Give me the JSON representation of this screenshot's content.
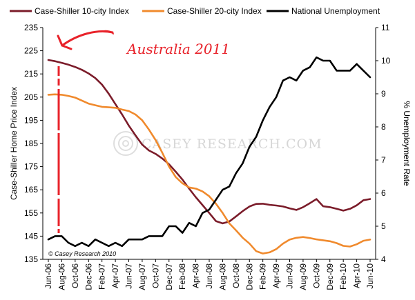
{
  "chart_data": {
    "type": "line",
    "title": "",
    "x": [
      "Jun-06",
      "Jul-06",
      "Aug-06",
      "Sep-06",
      "Oct-06",
      "Nov-06",
      "Dec-06",
      "Jan-07",
      "Feb-07",
      "Mar-07",
      "Apr-07",
      "May-07",
      "Jun-07",
      "Jul-07",
      "Aug-07",
      "Sep-07",
      "Oct-07",
      "Nov-07",
      "Dec-07",
      "Jan-08",
      "Feb-08",
      "Mar-08",
      "Apr-08",
      "May-08",
      "Jun-08",
      "Jul-08",
      "Aug-08",
      "Sep-08",
      "Oct-08",
      "Nov-08",
      "Dec-08",
      "Jan-09",
      "Feb-09",
      "Mar-09",
      "Apr-09",
      "May-09",
      "Jun-09",
      "Jul-09",
      "Aug-09",
      "Sep-09",
      "Oct-09",
      "Nov-09",
      "Dec-09",
      "Jan-10",
      "Feb-10",
      "Mar-10",
      "Apr-10",
      "May-10",
      "Jun-10"
    ],
    "x_tick_labels": [
      "Jun-06",
      "Aug-06",
      "Oct-06",
      "Dec-06",
      "Feb-07",
      "Apr-07",
      "Jun-07",
      "Aug-07",
      "Oct-07",
      "Dec-07",
      "Feb-08",
      "Apr-08",
      "Jun-08",
      "Aug-08",
      "Oct-08",
      "Dec-08",
      "Feb-09",
      "Apr-09",
      "Jun-09",
      "Aug-09",
      "Oct-09",
      "Dec-09",
      "Feb-10",
      "Apr-10",
      "Jun-10"
    ],
    "ylabel": "Case-Shiller Home Price Index",
    "ylim": [
      135,
      235
    ],
    "y_ticks": [
      135,
      145,
      155,
      165,
      175,
      185,
      195,
      205,
      215,
      225,
      235
    ],
    "y2label": "% Unemployment Rate",
    "y2lim": [
      4,
      11
    ],
    "y2_ticks": [
      4,
      5,
      6,
      7,
      8,
      9,
      10,
      11
    ],
    "grid": false,
    "legend_position": "top",
    "series": [
      {
        "name": "Case-Shiller  10-city Index",
        "axis": "left",
        "color": "#7b1c2a",
        "values": [
          221.0,
          220.5,
          219.8,
          219.0,
          218.0,
          216.8,
          215.2,
          213.2,
          210.4,
          206.5,
          202.0,
          197.5,
          192.7,
          188.5,
          184.5,
          182.0,
          180.5,
          178.5,
          176.0,
          172.8,
          169.4,
          165.5,
          161.8,
          158.4,
          155.0,
          151.5,
          150.5,
          151.3,
          153.5,
          155.8,
          157.8,
          158.9,
          159.0,
          158.5,
          158.2,
          157.8,
          157.0,
          156.3,
          157.5,
          159.2,
          161.0,
          157.9,
          157.5,
          156.8,
          156.0,
          156.8,
          158.3,
          160.5,
          161.0
        ]
      },
      {
        "name": "Case-Shiller 20-city Index",
        "axis": "left",
        "color": "#f08a2d",
        "values": [
          206.0,
          206.2,
          206.0,
          205.5,
          204.8,
          203.5,
          202.2,
          201.5,
          200.8,
          200.6,
          200.4,
          199.6,
          199.0,
          197.5,
          195.0,
          191.0,
          186.5,
          181.0,
          175.0,
          170.5,
          167.8,
          166.0,
          165.5,
          164.3,
          162.2,
          159.0,
          155.0,
          150.5,
          147.5,
          144.3,
          141.8,
          138.5,
          137.5,
          138.0,
          139.4,
          141.8,
          143.5,
          144.3,
          144.6,
          144.2,
          143.6,
          143.2,
          142.8,
          142.0,
          140.8,
          140.5,
          141.5,
          143.0,
          143.5
        ]
      },
      {
        "name": "National Unemployment",
        "axis": "right",
        "color": "#000000",
        "values": [
          4.6,
          4.7,
          4.7,
          4.5,
          4.4,
          4.5,
          4.4,
          4.6,
          4.5,
          4.4,
          4.5,
          4.4,
          4.6,
          4.6,
          4.6,
          4.7,
          4.7,
          4.7,
          5.0,
          5.0,
          4.8,
          5.1,
          5.0,
          5.4,
          5.5,
          5.8,
          6.1,
          6.2,
          6.6,
          6.9,
          7.4,
          7.7,
          8.2,
          8.6,
          8.9,
          9.4,
          9.5,
          9.4,
          9.7,
          9.8,
          10.1,
          10.0,
          10.0,
          9.7,
          9.7,
          9.7,
          9.9,
          9.7,
          9.5
        ]
      }
    ],
    "annotations": [
      "Australia 2011",
      "© Casey Research 2010"
    ]
  },
  "watermark": "CASEY RESEARCH.COM",
  "colors": {
    "annotation_red": "#e8222a"
  }
}
